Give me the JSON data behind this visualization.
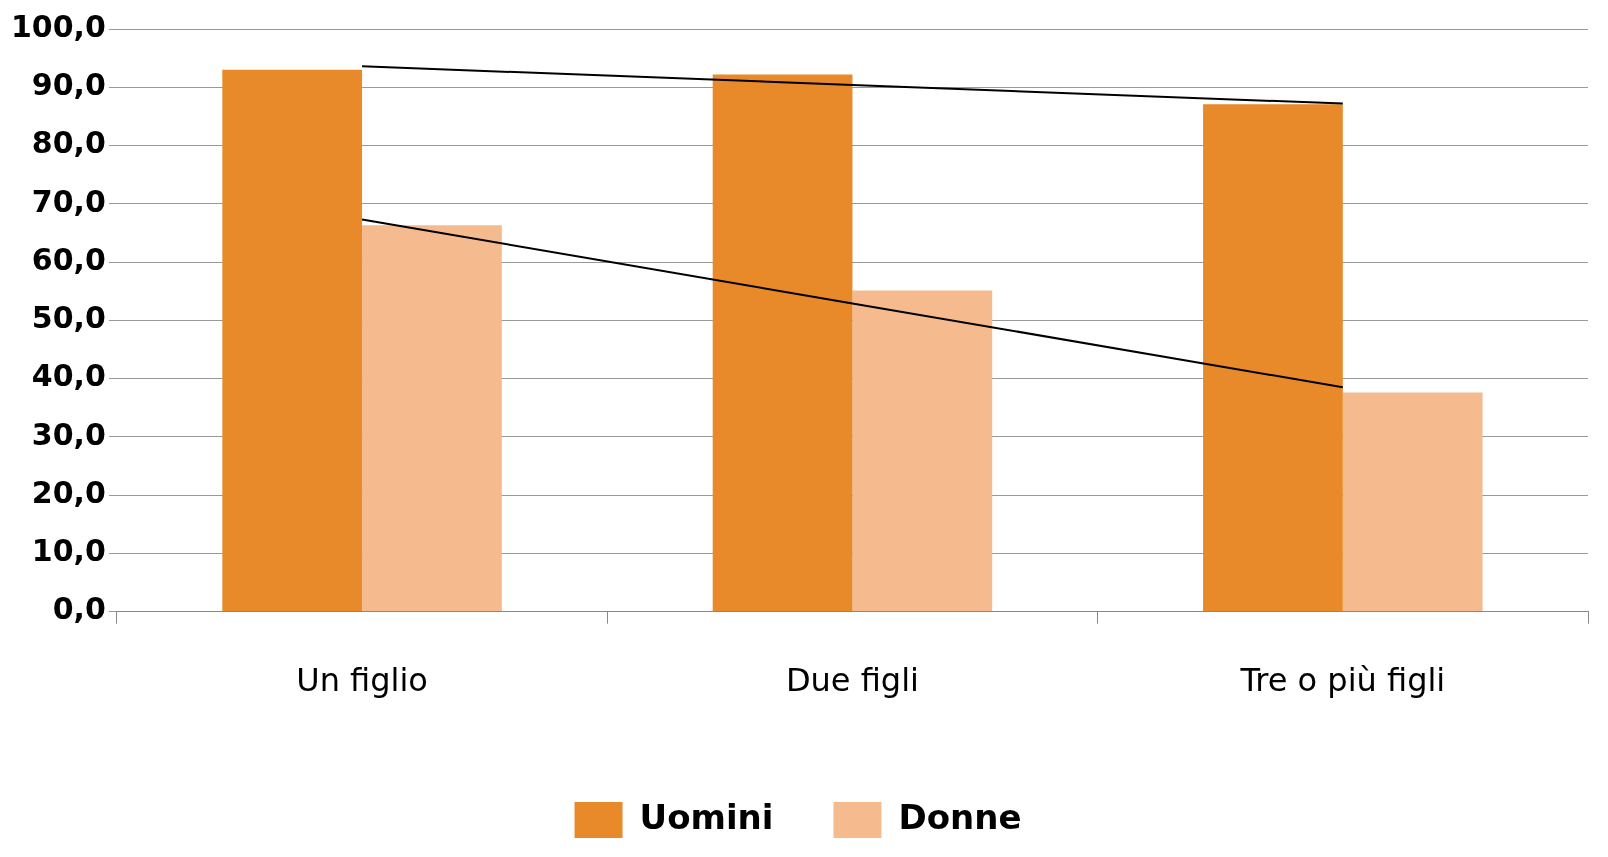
{
  "chart_data": {
    "type": "bar",
    "categories": [
      "Un figlio",
      "Due figli",
      "Tre o più figli"
    ],
    "series": [
      {
        "name": "Uomini",
        "color": "#e8892a",
        "values": [
          93.0,
          92.2,
          87.1
        ]
      },
      {
        "name": "Donne",
        "color": "#f5bb8f",
        "values": [
          66.3,
          55.1,
          37.6
        ]
      },
      {
        "type": "line",
        "color": "#000000",
        "values": [
          93.6,
          90.4,
          87.2
        ]
      },
      {
        "type": "line",
        "color": "#000000",
        "values": [
          67.3,
          52.9,
          38.5
        ]
      }
    ],
    "ylim": [
      0,
      100
    ],
    "yticks": [
      {
        "value": 0,
        "label": "0,0"
      },
      {
        "value": 10,
        "label": "10,0"
      },
      {
        "value": 20,
        "label": "20,0"
      },
      {
        "value": 30,
        "label": "30,0"
      },
      {
        "value": 40,
        "label": "40,0"
      },
      {
        "value": 50,
        "label": "50,0"
      },
      {
        "value": 60,
        "label": "60,0"
      },
      {
        "value": 70,
        "label": "70,0"
      },
      {
        "value": 80,
        "label": "80,0"
      },
      {
        "value": 90,
        "label": "90,0"
      },
      {
        "value": 100,
        "label": "100,0"
      }
    ],
    "grid": "y",
    "legend": "bottom",
    "marker": "none"
  }
}
